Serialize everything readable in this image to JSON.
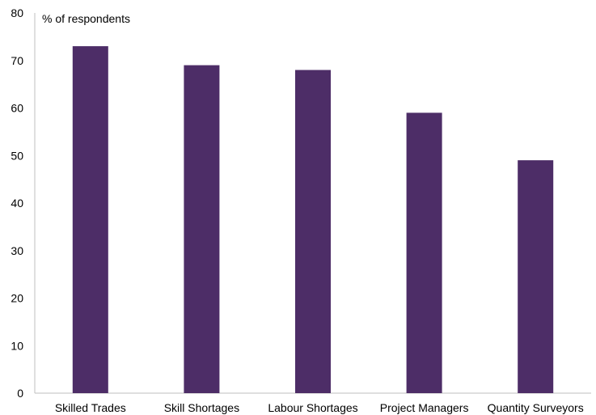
{
  "chart_data": {
    "type": "bar",
    "unit_label": "% of respondents",
    "categories": [
      "Skilled Trades",
      "Skill Shortages",
      "Labour Shortages",
      "Project Managers",
      "Quantity Surveyors"
    ],
    "values": [
      73,
      69,
      68,
      59,
      49
    ],
    "ylim": [
      0,
      80
    ],
    "yticks": [
      0,
      10,
      20,
      30,
      40,
      50,
      60,
      70,
      80
    ],
    "grid": false,
    "bar_color": "#4d2d67",
    "axis_color": "#bfbfbf"
  }
}
